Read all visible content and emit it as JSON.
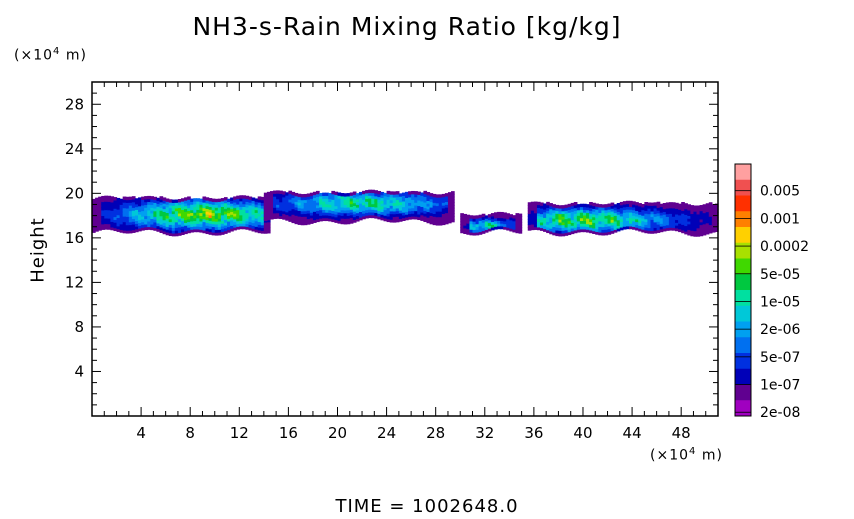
{
  "chart_data": {
    "type": "heatmap",
    "title": "NH3-s-Rain Mixing Ratio [kg/kg]",
    "ylabel": "Height",
    "y_unit": "(×10⁴ m)",
    "x_unit": "(×10⁴ m)",
    "xlim": [
      0,
      51
    ],
    "ylim": [
      0,
      30
    ],
    "x_ticks": [
      "4",
      "8",
      "12",
      "16",
      "20",
      "24",
      "28",
      "32",
      "36",
      "40",
      "44",
      "48"
    ],
    "y_ticks": [
      "4",
      "8",
      "12",
      "16",
      "20",
      "24",
      "28"
    ],
    "colorbar": {
      "labels": [
        "0.005",
        "0.001",
        "0.0002",
        "5e-05",
        "1e-05",
        "2e-06",
        "5e-07",
        "1e-07",
        "2e-08"
      ],
      "colors": [
        "#ffa0a0",
        "#f05050",
        "#ff3000",
        "#ff8000",
        "#ffd000",
        "#a8e000",
        "#40d800",
        "#00c840",
        "#00e0a0",
        "#00c8d8",
        "#00a0f0",
        "#0070f0",
        "#0030e0",
        "#0000b8",
        "#600090",
        "#a000c0"
      ]
    },
    "bands": [
      {
        "x_start": 0.0,
        "x_end": 14.5,
        "y_bottom": 16.5,
        "y_top": 19.5,
        "peak_x": 9.0,
        "peak_y": 18.0,
        "peak_level": 0.0002
      },
      {
        "x_start": 14.0,
        "x_end": 29.5,
        "y_bottom": 17.5,
        "y_top": 20.0,
        "peak_x": 22.0,
        "peak_y": 19.0,
        "peak_level": 1e-05
      },
      {
        "x_start": 30.0,
        "x_end": 35.0,
        "y_bottom": 16.5,
        "y_top": 18.0,
        "peak_x": 32.0,
        "peak_y": 17.0,
        "peak_level": 5e-06
      },
      {
        "x_start": 35.5,
        "x_end": 51.0,
        "y_bottom": 16.5,
        "y_top": 19.0,
        "peak_x": 40.0,
        "peak_y": 17.5,
        "peak_level": 5e-05
      }
    ]
  },
  "time_label": "TIME = 1002648.0"
}
